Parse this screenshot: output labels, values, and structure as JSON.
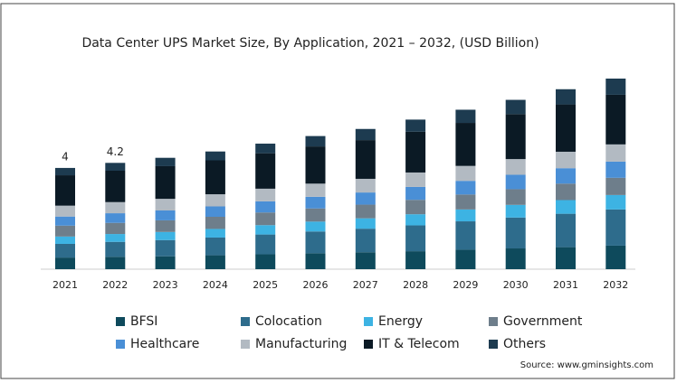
{
  "chart_data": {
    "type": "stacked_bar",
    "title": "Data Center UPS Market Size, By Application, 2021 – 2032, (USD Billion)",
    "categories": [
      "2021",
      "2022",
      "2023",
      "2024",
      "2025",
      "2026",
      "2027",
      "2028",
      "2029",
      "2030",
      "2031",
      "2032"
    ],
    "series": [
      {
        "name": "BFSI",
        "color": "#0e4a5c",
        "values": [
          0.46,
          0.49,
          0.51,
          0.55,
          0.59,
          0.63,
          0.67,
          0.71,
          0.77,
          0.82,
          0.87,
          0.93
        ]
      },
      {
        "name": "Colocation",
        "color": "#2e6c8c",
        "values": [
          0.54,
          0.59,
          0.64,
          0.7,
          0.78,
          0.86,
          0.93,
          1.02,
          1.12,
          1.22,
          1.32,
          1.43
        ]
      },
      {
        "name": "Energy",
        "color": "#3db3e3",
        "values": [
          0.29,
          0.31,
          0.32,
          0.34,
          0.37,
          0.39,
          0.41,
          0.44,
          0.47,
          0.5,
          0.54,
          0.57
        ]
      },
      {
        "name": "Government",
        "color": "#6e7e8b",
        "values": [
          0.43,
          0.44,
          0.46,
          0.48,
          0.5,
          0.52,
          0.54,
          0.57,
          0.59,
          0.62,
          0.65,
          0.68
        ]
      },
      {
        "name": "Healthcare",
        "color": "#4a8fd6",
        "values": [
          0.36,
          0.38,
          0.39,
          0.41,
          0.44,
          0.46,
          0.48,
          0.51,
          0.54,
          0.57,
          0.61,
          0.64
        ]
      },
      {
        "name": "Manufacturing",
        "color": "#b2bac2",
        "values": [
          0.43,
          0.44,
          0.46,
          0.48,
          0.5,
          0.52,
          0.54,
          0.57,
          0.59,
          0.62,
          0.65,
          0.68
        ]
      },
      {
        "name": "IT & Telecom",
        "color": "#0b1a25",
        "values": [
          1.2,
          1.24,
          1.29,
          1.34,
          1.4,
          1.47,
          1.53,
          1.61,
          1.7,
          1.78,
          1.87,
          1.96
        ]
      },
      {
        "name": "Others",
        "color": "#1d3b50",
        "values": [
          0.29,
          0.31,
          0.33,
          0.35,
          0.38,
          0.41,
          0.44,
          0.48,
          0.52,
          0.56,
          0.6,
          0.64
        ]
      }
    ],
    "annotations": [
      {
        "category": "2021",
        "text": "4"
      },
      {
        "category": "2022",
        "text": "4.2"
      }
    ],
    "source": "Source: www.gminsights.com"
  }
}
